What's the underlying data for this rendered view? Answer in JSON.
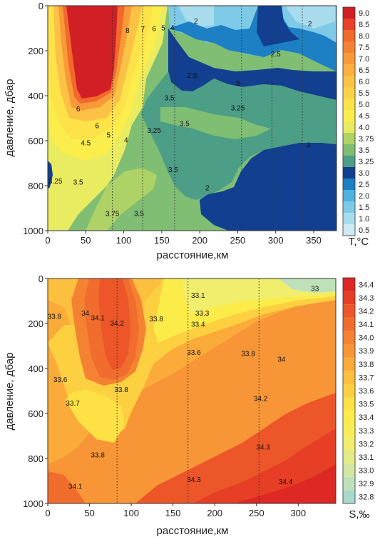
{
  "chart_data": [
    {
      "type": "heatmap",
      "name": "temperature",
      "xlabel": "расстояние,км",
      "ylabel": "давление, дбар",
      "colorbar_label": "T,°C",
      "x_range": [
        0,
        380
      ],
      "y_range": [
        1000,
        0
      ],
      "x_ticks": [
        0,
        50,
        100,
        150,
        200,
        250,
        300,
        350
      ],
      "y_ticks": [
        0,
        200,
        400,
        600,
        800,
        1000
      ],
      "colorbar": {
        "levels": [
          "0.5",
          "1.0",
          "1.5",
          "2.0",
          "2.5",
          "3.0",
          "3.25",
          "3.5",
          "3.75",
          "4.0",
          "4.5",
          "5.0",
          "5.5",
          "6.0",
          "6.5",
          "7.0",
          "7.5",
          "8.0",
          "8.5",
          "9.0"
        ],
        "colors": [
          "#cfeaf4",
          "#a9dced",
          "#7fcbe7",
          "#4fb2e0",
          "#1d7fc4",
          "#123f8f",
          "#4d9e86",
          "#7fbe73",
          "#afd267",
          "#e9eb61",
          "#fbed4c",
          "#fde24a",
          "#fdd247",
          "#fcc245",
          "#fbb03f",
          "#f99a39",
          "#f58432",
          "#f1692b",
          "#e9412a",
          "#d21f26"
        ]
      },
      "stations_km": [
        85,
        125,
        167,
        255,
        295,
        335
      ],
      "contour_labels": [
        {
          "text": "8",
          "x": 105,
          "y": 120
        },
        {
          "text": "7",
          "x": 125,
          "y": 115
        },
        {
          "text": "6",
          "x": 140,
          "y": 112
        },
        {
          "text": "5",
          "x": 152,
          "y": 110
        },
        {
          "text": "4",
          "x": 164,
          "y": 108
        },
        {
          "text": "2",
          "x": 195,
          "y": 80
        },
        {
          "text": "2",
          "x": 345,
          "y": 90
        },
        {
          "text": "2.5",
          "x": 300,
          "y": 225
        },
        {
          "text": "2.5",
          "x": 190,
          "y": 320
        },
        {
          "text": "3",
          "x": 250,
          "y": 355
        },
        {
          "text": "3.5",
          "x": 160,
          "y": 420
        },
        {
          "text": "3.25",
          "x": 250,
          "y": 465
        },
        {
          "text": "6",
          "x": 40,
          "y": 470
        },
        {
          "text": "6",
          "x": 65,
          "y": 545
        },
        {
          "text": "3.5",
          "x": 180,
          "y": 535
        },
        {
          "text": "3.25",
          "x": 140,
          "y": 565
        },
        {
          "text": "5",
          "x": 80,
          "y": 585
        },
        {
          "text": "4.5",
          "x": 50,
          "y": 620
        },
        {
          "text": "4",
          "x": 103,
          "y": 608
        },
        {
          "text": "3",
          "x": 343,
          "y": 630
        },
        {
          "text": "3.5",
          "x": 165,
          "y": 740
        },
        {
          "text": "3.25",
          "x": 10,
          "y": 790
        },
        {
          "text": "3.5",
          "x": 40,
          "y": 795
        },
        {
          "text": "2",
          "x": 210,
          "y": 820
        },
        {
          "text": "3.75",
          "x": 85,
          "y": 935
        },
        {
          "text": "3.5",
          "x": 120,
          "y": 935
        }
      ]
    },
    {
      "type": "heatmap",
      "name": "salinity",
      "xlabel": "расстояние,км",
      "ylabel": "давление, дбар",
      "colorbar_label": "S,‰",
      "x_range": [
        0,
        345
      ],
      "y_range": [
        1000,
        0
      ],
      "x_ticks": [
        0,
        50,
        100,
        150,
        200,
        250,
        300
      ],
      "y_ticks": [
        0,
        200,
        400,
        600,
        800,
        1000
      ],
      "colorbar": {
        "levels": [
          "32.8",
          "32.9",
          "33.0",
          "33.1",
          "33.2",
          "33.3",
          "33.4",
          "33.5",
          "33.6",
          "33.7",
          "33.8",
          "33.9",
          "34.0",
          "34.1",
          "34.2",
          "34.3",
          "34.4"
        ],
        "colors": [
          "#a8d9cf",
          "#bfe1b9",
          "#d3e6a2",
          "#e3ea86",
          "#f0ee6c",
          "#f7ee57",
          "#fcec49",
          "#fde145",
          "#fdd041",
          "#fcbf3e",
          "#fbab3a",
          "#f89637",
          "#f58232",
          "#f16d2d",
          "#ec5628",
          "#e63f25",
          "#dd2824"
        ]
      },
      "stations_km": [
        83,
        168,
        253
      ],
      "contour_labels": [
        {
          "text": "33.8",
          "x": 8,
          "y": 180
        },
        {
          "text": "34",
          "x": 45,
          "y": 165
        },
        {
          "text": "34.1",
          "x": 60,
          "y": 185
        },
        {
          "text": "34.2",
          "x": 83,
          "y": 210
        },
        {
          "text": "33.8",
          "x": 130,
          "y": 190
        },
        {
          "text": "33.1",
          "x": 180,
          "y": 85
        },
        {
          "text": "33",
          "x": 320,
          "y": 55
        },
        {
          "text": "33.3",
          "x": 185,
          "y": 165
        },
        {
          "text": "33.4",
          "x": 180,
          "y": 215
        },
        {
          "text": "33.6",
          "x": 175,
          "y": 340
        },
        {
          "text": "33.8",
          "x": 240,
          "y": 345
        },
        {
          "text": "34",
          "x": 280,
          "y": 370
        },
        {
          "text": "33.6",
          "x": 15,
          "y": 460
        },
        {
          "text": "33.8",
          "x": 88,
          "y": 505
        },
        {
          "text": "33.7",
          "x": 30,
          "y": 565
        },
        {
          "text": "34.2",
          "x": 255,
          "y": 545
        },
        {
          "text": "34.3",
          "x": 258,
          "y": 760
        },
        {
          "text": "33.8",
          "x": 60,
          "y": 795
        },
        {
          "text": "34.3",
          "x": 175,
          "y": 905
        },
        {
          "text": "34.4",
          "x": 285,
          "y": 915
        },
        {
          "text": "34.1",
          "x": 33,
          "y": 935
        }
      ]
    }
  ]
}
